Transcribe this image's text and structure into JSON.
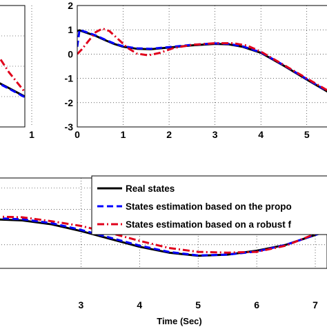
{
  "colors": {
    "real": "#000000",
    "proposed": "#0000ff",
    "robust": "#e0001b"
  },
  "legend": {
    "entries": [
      {
        "key": "real",
        "label": "Real states"
      },
      {
        "key": "proposed",
        "label": "States estimation based on the propo"
      },
      {
        "key": "robust",
        "label": "States estimation based on a robust f"
      }
    ]
  },
  "chart_data": [
    {
      "id": "left",
      "type": "line",
      "xlim": [
        0,
        1
      ],
      "x_ticks": [
        "1"
      ],
      "y_ticks": [],
      "series": [
        {
          "key": "real",
          "style": "solid",
          "x": [
            0.0,
            0.5,
            1.0
          ],
          "y": [
            -0.45,
            -0.72,
            -1.0
          ]
        },
        {
          "key": "proposed",
          "style": "dashed",
          "x": [
            0.0,
            0.5,
            1.0
          ],
          "y": [
            -0.47,
            -0.74,
            -1.02
          ]
        },
        {
          "key": "robust",
          "style": "dashdot",
          "x": [
            0.0,
            0.5,
            1.0
          ],
          "y": [
            0.6,
            -0.2,
            -0.85
          ]
        }
      ]
    },
    {
      "id": "top-right",
      "type": "line",
      "xlim": [
        0,
        5.5
      ],
      "ylim": [
        -3,
        2
      ],
      "x_ticks": [
        "0",
        "1",
        "2",
        "3",
        "4",
        "5"
      ],
      "y_ticks": [
        "2",
        "1",
        "0",
        "-1",
        "-2",
        "-3"
      ],
      "series": [
        {
          "key": "real",
          "style": "solid",
          "x": [
            0,
            0.05,
            0.2,
            0.4,
            0.6,
            0.8,
            1.0,
            1.3,
            1.6,
            2.0,
            2.5,
            3.0,
            3.3,
            3.6,
            4.0,
            4.5,
            5.0,
            5.5
          ],
          "y": [
            0.95,
            0.98,
            0.88,
            0.75,
            0.58,
            0.42,
            0.3,
            0.22,
            0.2,
            0.27,
            0.36,
            0.42,
            0.4,
            0.3,
            0.05,
            -0.48,
            -1.05,
            -1.6
          ]
        },
        {
          "key": "proposed",
          "style": "dashed",
          "x": [
            0,
            0.05,
            0.2,
            0.4,
            0.6,
            0.8,
            1.0,
            1.3,
            1.6,
            2.0,
            2.5,
            3.0,
            3.3,
            3.6,
            4.0,
            4.5,
            5.0,
            5.5
          ],
          "y": [
            0.3,
            1.0,
            0.9,
            0.77,
            0.6,
            0.44,
            0.32,
            0.24,
            0.22,
            0.29,
            0.38,
            0.44,
            0.42,
            0.32,
            0.07,
            -0.46,
            -1.03,
            -1.58
          ]
        },
        {
          "key": "robust",
          "style": "dashdot",
          "x": [
            0,
            0.1,
            0.25,
            0.4,
            0.55,
            0.7,
            0.9,
            1.1,
            1.3,
            1.55,
            1.8,
            2.1,
            2.5,
            3.0,
            3.4,
            3.7,
            4.0,
            4.5,
            5.0,
            5.5
          ],
          "y": [
            0.0,
            0.2,
            0.55,
            0.9,
            1.05,
            0.95,
            0.6,
            0.25,
            0.02,
            -0.05,
            0.05,
            0.25,
            0.38,
            0.45,
            0.45,
            0.35,
            0.1,
            -0.45,
            -1.0,
            -1.55
          ]
        }
      ]
    },
    {
      "id": "bottom",
      "type": "line",
      "xlim": [
        1.5,
        7.2
      ],
      "ylim": [
        -1.3,
        1.0
      ],
      "xlabel": "Time (Sec)",
      "x_ticks": [
        "3",
        "4",
        "5",
        "6",
        "7"
      ],
      "series": [
        {
          "key": "real",
          "style": "solid",
          "x": [
            1.5,
            2.0,
            2.5,
            3.0,
            3.5,
            4.0,
            4.5,
            5.0,
            5.5,
            6.0,
            6.5,
            7.0,
            7.2
          ],
          "y": [
            -0.05,
            -0.08,
            -0.18,
            -0.35,
            -0.55,
            -0.75,
            -0.9,
            -0.98,
            -0.95,
            -0.85,
            -0.7,
            -0.45,
            -0.35
          ]
        },
        {
          "key": "proposed",
          "style": "dashed",
          "x": [
            1.5,
            2.0,
            2.5,
            3.0,
            3.5,
            4.0,
            4.5,
            5.0,
            5.5,
            6.0,
            6.5,
            7.0,
            7.2
          ],
          "y": [
            -0.02,
            -0.05,
            -0.15,
            -0.32,
            -0.52,
            -0.72,
            -0.88,
            -0.97,
            -0.95,
            -0.87,
            -0.7,
            -0.45,
            -0.35
          ]
        },
        {
          "key": "robust",
          "style": "dashdot",
          "x": [
            1.5,
            2.0,
            2.5,
            3.0,
            3.5,
            4.0,
            4.5,
            5.0,
            5.5,
            6.0,
            6.5,
            7.0,
            7.2
          ],
          "y": [
            0.02,
            0.0,
            -0.1,
            -0.22,
            -0.4,
            -0.6,
            -0.78,
            -0.88,
            -0.9,
            -0.88,
            -0.72,
            -0.42,
            -0.3
          ]
        }
      ]
    }
  ]
}
